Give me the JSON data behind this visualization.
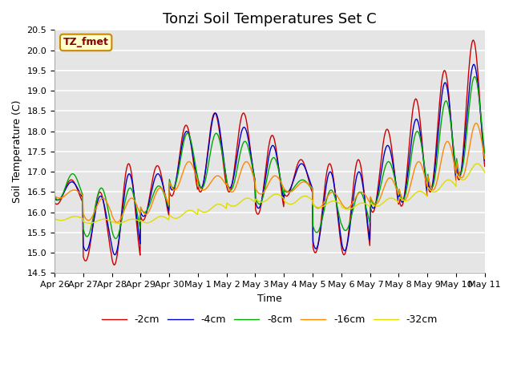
{
  "title": "Tonzi Soil Temperatures Set C",
  "xlabel": "Time",
  "ylabel": "Soil Temperature (C)",
  "annotation": "TZ_fmet",
  "ylim": [
    14.5,
    20.5
  ],
  "yticks": [
    14.5,
    15.0,
    15.5,
    16.0,
    16.5,
    17.0,
    17.5,
    18.0,
    18.5,
    19.0,
    19.5,
    20.0,
    20.5
  ],
  "xtick_labels": [
    "Apr 26",
    "Apr 27",
    "Apr 28",
    "Apr 29",
    "Apr 30",
    "May 1",
    "May 2",
    "May 3",
    "May 4",
    "May 5",
    "May 6",
    "May 7",
    "May 8",
    "May 9",
    "May 10",
    "May 11"
  ],
  "series_colors": [
    "#cc0000",
    "#0000cc",
    "#00aa00",
    "#ff8800",
    "#dddd00"
  ],
  "series_labels": [
    "-2cm",
    "-4cm",
    "-8cm",
    "-16cm",
    "-32cm"
  ],
  "bg_color": "#e5e5e5",
  "grid_color": "#ffffff",
  "title_fontsize": 13,
  "axis_fontsize": 9,
  "tick_fontsize": 8,
  "legend_fontsize": 9,
  "annotation_bg": "#ffffcc",
  "annotation_border": "#cc8800",
  "n_days": 15,
  "pts_per_day": 48
}
